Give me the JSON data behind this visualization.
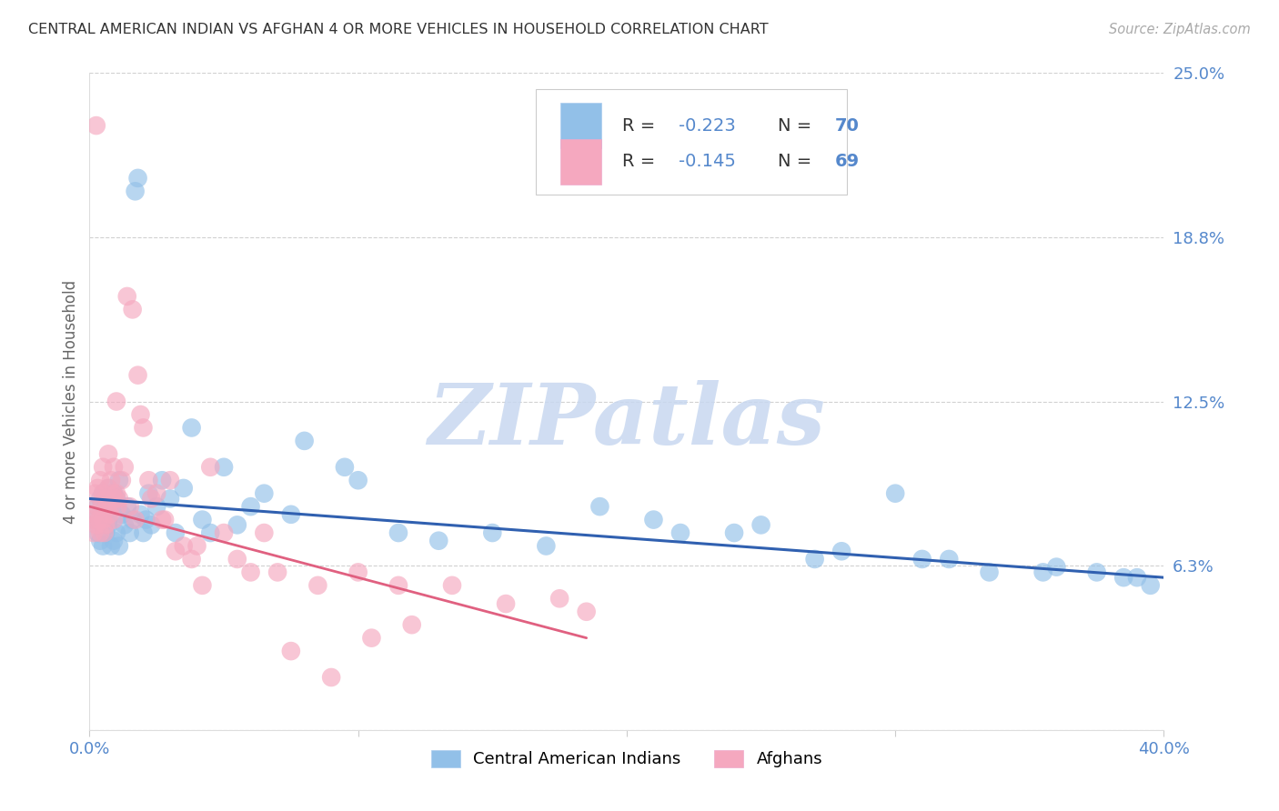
{
  "title": "CENTRAL AMERICAN INDIAN VS AFGHAN 4 OR MORE VEHICLES IN HOUSEHOLD CORRELATION CHART",
  "source": "Source: ZipAtlas.com",
  "ylabel": "4 or more Vehicles in Household",
  "xlim": [
    0.0,
    40.0
  ],
  "ylim": [
    0.0,
    25.0
  ],
  "ytick_positions": [
    0.0,
    6.25,
    12.5,
    18.75,
    25.0
  ],
  "ytick_labels": [
    "",
    "6.3%",
    "12.5%",
    "18.8%",
    "25.0%"
  ],
  "xtick_positions": [
    0.0,
    10.0,
    20.0,
    30.0,
    40.0
  ],
  "xtick_labels": [
    "0.0%",
    "",
    "",
    "",
    "40.0%"
  ],
  "blue_color": "#92c0e8",
  "pink_color": "#f5a8bf",
  "blue_line_color": "#3060b0",
  "pink_line_color": "#e06080",
  "legend_R_blue": "R = -0.223",
  "legend_N_blue": "N = 70",
  "legend_R_pink": "R = -0.145",
  "legend_N_pink": "N = 69",
  "legend_label_blue": "Central American Indians",
  "legend_label_pink": "Afghans",
  "watermark": "ZIPatlas",
  "watermark_color": "#c8d8f0",
  "blue_x": [
    0.2,
    0.3,
    0.3,
    0.4,
    0.4,
    0.5,
    0.5,
    0.5,
    0.6,
    0.6,
    0.7,
    0.7,
    0.7,
    0.8,
    0.8,
    0.9,
    0.9,
    1.0,
    1.0,
    1.1,
    1.1,
    1.2,
    1.3,
    1.4,
    1.5,
    1.6,
    1.7,
    1.8,
    1.9,
    2.0,
    2.1,
    2.2,
    2.3,
    2.5,
    2.7,
    3.0,
    3.2,
    3.5,
    3.8,
    4.2,
    4.5,
    5.0,
    5.5,
    6.0,
    6.5,
    7.5,
    8.0,
    9.5,
    10.0,
    11.5,
    13.0,
    15.0,
    17.0,
    19.0,
    21.0,
    22.0,
    25.0,
    27.0,
    30.0,
    32.0,
    33.5,
    35.5,
    37.5,
    38.5,
    39.5,
    24.0,
    28.0,
    31.0,
    36.0,
    39.0
  ],
  "blue_y": [
    8.0,
    7.5,
    8.5,
    7.2,
    8.8,
    7.0,
    8.2,
    9.0,
    7.5,
    8.5,
    7.8,
    9.2,
    8.0,
    7.0,
    8.5,
    7.2,
    9.0,
    7.5,
    8.8,
    7.0,
    9.5,
    8.2,
    7.8,
    8.5,
    7.5,
    8.0,
    20.5,
    21.0,
    8.2,
    7.5,
    8.0,
    9.0,
    7.8,
    8.5,
    9.5,
    8.8,
    7.5,
    9.2,
    11.5,
    8.0,
    7.5,
    10.0,
    7.8,
    8.5,
    9.0,
    8.2,
    11.0,
    10.0,
    9.5,
    7.5,
    7.2,
    7.5,
    7.0,
    8.5,
    8.0,
    7.5,
    7.8,
    6.5,
    9.0,
    6.5,
    6.0,
    6.0,
    6.0,
    5.8,
    5.5,
    7.5,
    6.8,
    6.5,
    6.2,
    5.8
  ],
  "pink_x": [
    0.1,
    0.15,
    0.2,
    0.2,
    0.25,
    0.3,
    0.3,
    0.35,
    0.4,
    0.4,
    0.5,
    0.5,
    0.5,
    0.6,
    0.6,
    0.7,
    0.7,
    0.8,
    0.8,
    0.9,
    0.9,
    1.0,
    1.0,
    1.1,
    1.2,
    1.3,
    1.4,
    1.5,
    1.6,
    1.7,
    1.8,
    1.9,
    2.0,
    2.2,
    2.5,
    2.8,
    3.0,
    3.5,
    4.0,
    4.5,
    5.0,
    6.0,
    7.0,
    8.5,
    10.0,
    11.5,
    13.5,
    15.5,
    17.5,
    18.5,
    0.25,
    0.45,
    0.55,
    0.65,
    0.75,
    0.85,
    0.95,
    1.05,
    2.3,
    2.7,
    3.2,
    3.8,
    4.2,
    5.5,
    6.5,
    7.5,
    9.0,
    10.5,
    12.0
  ],
  "pink_y": [
    8.0,
    7.5,
    8.2,
    9.0,
    7.8,
    8.5,
    9.2,
    8.0,
    7.5,
    9.5,
    8.0,
    9.0,
    10.0,
    7.8,
    8.8,
    9.2,
    10.5,
    8.5,
    9.5,
    8.0,
    10.0,
    9.0,
    12.5,
    8.8,
    9.5,
    10.0,
    16.5,
    8.5,
    16.0,
    8.0,
    13.5,
    12.0,
    11.5,
    9.5,
    9.0,
    8.0,
    9.5,
    7.0,
    7.0,
    10.0,
    7.5,
    6.0,
    6.0,
    5.5,
    6.0,
    5.5,
    5.5,
    4.8,
    5.0,
    4.5,
    23.0,
    8.5,
    7.5,
    8.5,
    8.2,
    9.0,
    8.8,
    8.5,
    8.8,
    8.0,
    6.8,
    6.5,
    5.5,
    6.5,
    7.5,
    3.0,
    2.0,
    3.5,
    4.0
  ],
  "background_color": "#ffffff",
  "grid_color": "#cccccc",
  "title_color": "#333333",
  "tick_label_color": "#5588cc",
  "legend_text_dark": "#333333",
  "legend_text_blue": "#5588cc"
}
